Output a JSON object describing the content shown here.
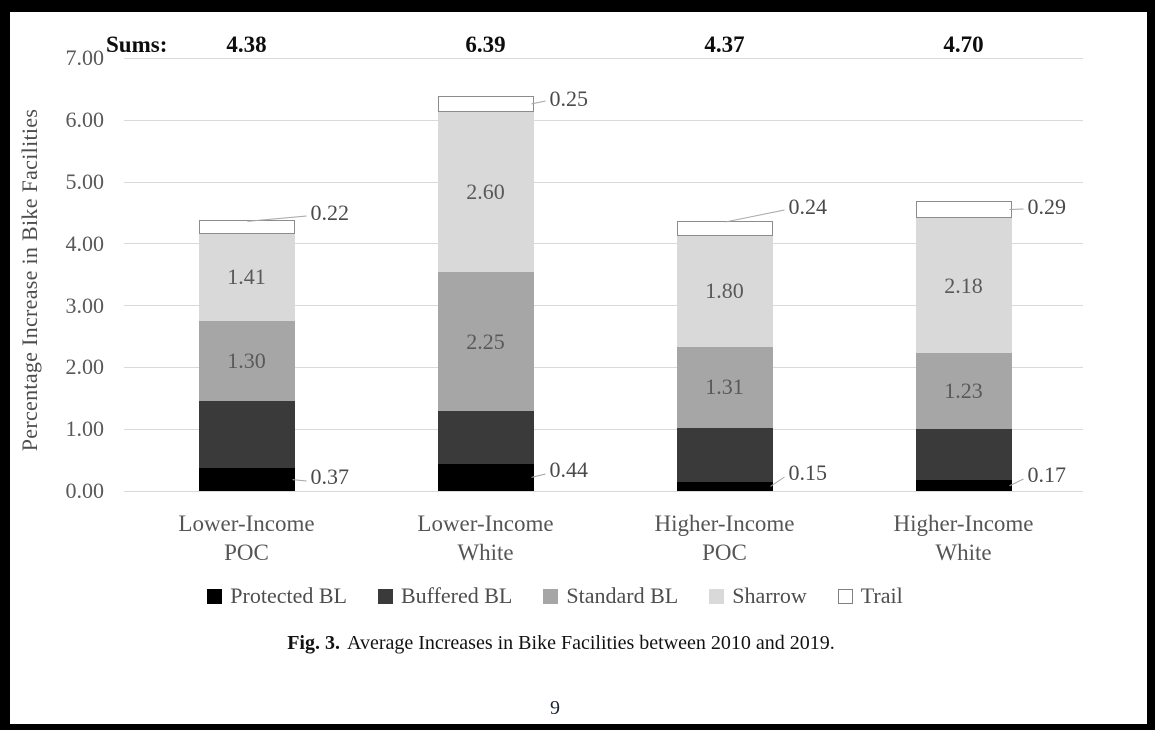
{
  "page_number": "9",
  "caption": {
    "label": "Fig. 3.",
    "text": "Average Increases in Bike Facilities between 2010 and 2019."
  },
  "chart_data": {
    "type": "bar",
    "stacked": true,
    "title": "",
    "y_axis_title": "Percentage Increase in Bike Facilities",
    "sums_label": "Sums:",
    "sums": [
      "4.38",
      "6.39",
      "4.37",
      "4.70"
    ],
    "categories": [
      [
        "Lower-Income",
        "POC"
      ],
      [
        "Lower-Income",
        "White"
      ],
      [
        "Higher-Income",
        "POC"
      ],
      [
        "Higher-Income",
        "White"
      ]
    ],
    "ylim": [
      0,
      7
    ],
    "yticks": [
      "0.00",
      "1.00",
      "2.00",
      "3.00",
      "4.00",
      "5.00",
      "6.00",
      "7.00"
    ],
    "grid": "horizontal",
    "legend_position": "bottom",
    "series": [
      {
        "name": "Protected BL",
        "color": "#000000",
        "values": [
          0.37,
          0.44,
          0.15,
          0.17
        ],
        "labels": [
          "0.37",
          "0.44",
          "0.15",
          "0.17"
        ],
        "label_position": "callout-right"
      },
      {
        "name": "Buffered BL",
        "color": "#3a3a3a",
        "values": [
          1.08,
          0.85,
          0.87,
          0.83
        ],
        "labels": [
          null,
          null,
          null,
          null
        ],
        "label_position": "none"
      },
      {
        "name": "Standard BL",
        "color": "#a6a6a6",
        "values": [
          1.3,
          2.25,
          1.31,
          1.23
        ],
        "labels": [
          "1.30",
          "2.25",
          "1.31",
          "1.23"
        ],
        "label_position": "inside"
      },
      {
        "name": "Sharrow",
        "color": "#d9d9d9",
        "values": [
          1.41,
          2.6,
          1.8,
          2.18
        ],
        "labels": [
          "1.41",
          "2.60",
          "1.80",
          "2.18"
        ],
        "label_position": "inside"
      },
      {
        "name": "Trail",
        "color": "#ffffff",
        "border_color": "#8c8c8c",
        "values": [
          0.22,
          0.25,
          0.24,
          0.29
        ],
        "labels": [
          "0.22",
          "0.25",
          "0.24",
          "0.29"
        ],
        "label_position": "callout-right"
      }
    ],
    "colors": {
      "grid": "#d9d9d9",
      "axis_text": "#595959",
      "segment_label_text": "#595959",
      "callout_text": "#4a4a4a",
      "leader_line": "#a6a6a6"
    }
  }
}
